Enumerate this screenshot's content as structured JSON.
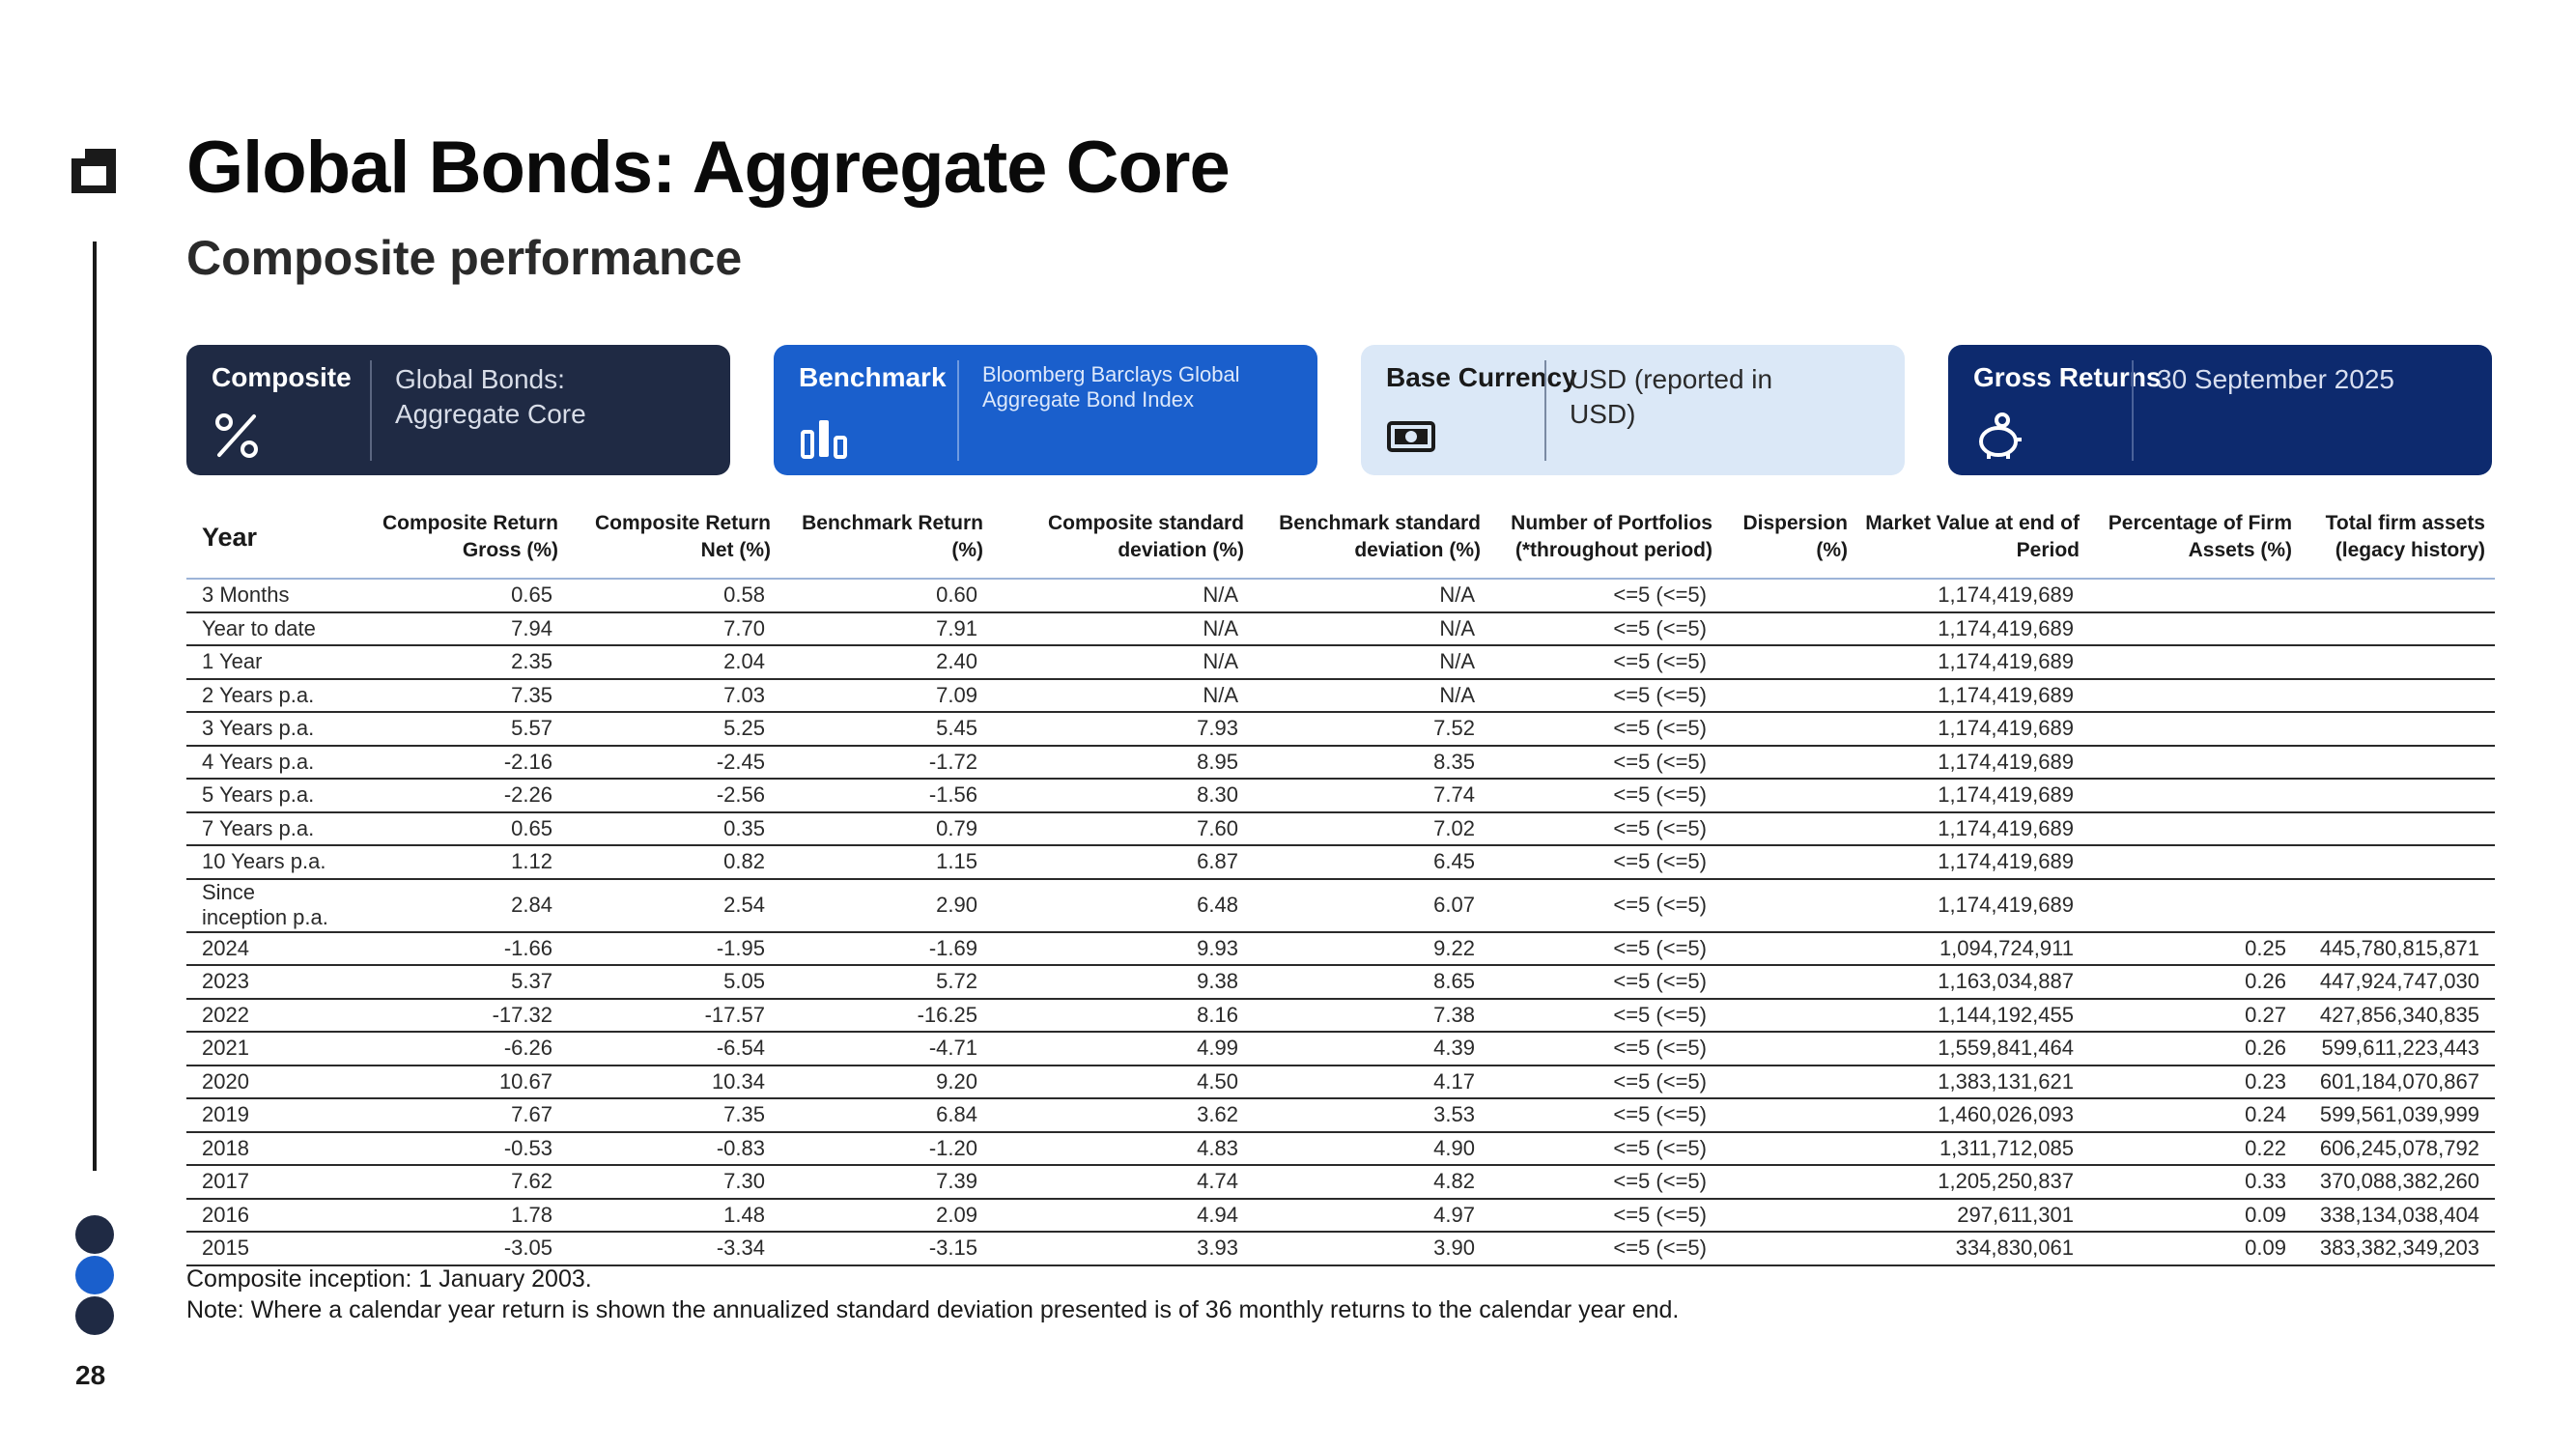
{
  "page": {
    "title": "Global Bonds: Aggregate Core",
    "subtitle": "Composite performance",
    "page_number": "28"
  },
  "brand": {
    "navy": "#1f2a44",
    "blue": "#1a5fcc",
    "light_blue": "#dbe8f7",
    "dark_blue": "#0d2a6e",
    "dot_colors": [
      "#1f2a44",
      "#1a5fcc",
      "#1f2a44"
    ]
  },
  "cards": [
    {
      "label": "Composite",
      "value": "Global Bonds: Aggregate Core",
      "icon": "percent-icon"
    },
    {
      "label": "Benchmark",
      "value": "Bloomberg Barclays Global Aggregate Bond Index",
      "icon": "bar-chart-icon"
    },
    {
      "label": "Base Currency",
      "value": "USD (reported in USD)",
      "icon": "banknote-icon"
    },
    {
      "label": "Gross Returns",
      "value": "30 September 2025",
      "icon": "piggy-bank-icon"
    }
  ],
  "table": {
    "headers": [
      "Year",
      "Composite Return Gross (%)",
      "Composite Return Net (%)",
      "Benchmark Return (%)",
      "Composite standard deviation (%)",
      "Benchmark standard deviation (%)",
      "Number of Portfolios (*throughout period)",
      "Dispersion (%)",
      "Market Value at end of Period",
      "Percentage of Firm Assets (%)",
      "Total firm assets (legacy history)"
    ],
    "rows": [
      [
        "3 Months",
        "0.65",
        "0.58",
        "0.60",
        "N/A",
        "N/A",
        "<=5 (<=5)",
        "",
        "1,174,419,689",
        "",
        ""
      ],
      [
        "Year to date",
        "7.94",
        "7.70",
        "7.91",
        "N/A",
        "N/A",
        "<=5 (<=5)",
        "",
        "1,174,419,689",
        "",
        ""
      ],
      [
        "1 Year",
        "2.35",
        "2.04",
        "2.40",
        "N/A",
        "N/A",
        "<=5 (<=5)",
        "",
        "1,174,419,689",
        "",
        ""
      ],
      [
        "2 Years p.a.",
        "7.35",
        "7.03",
        "7.09",
        "N/A",
        "N/A",
        "<=5 (<=5)",
        "",
        "1,174,419,689",
        "",
        ""
      ],
      [
        "3 Years p.a.",
        "5.57",
        "5.25",
        "5.45",
        "7.93",
        "7.52",
        "<=5 (<=5)",
        "",
        "1,174,419,689",
        "",
        ""
      ],
      [
        "4 Years p.a.",
        "-2.16",
        "-2.45",
        "-1.72",
        "8.95",
        "8.35",
        "<=5 (<=5)",
        "",
        "1,174,419,689",
        "",
        ""
      ],
      [
        "5 Years p.a.",
        "-2.26",
        "-2.56",
        "-1.56",
        "8.30",
        "7.74",
        "<=5 (<=5)",
        "",
        "1,174,419,689",
        "",
        ""
      ],
      [
        "7 Years p.a.",
        "0.65",
        "0.35",
        "0.79",
        "7.60",
        "7.02",
        "<=5 (<=5)",
        "",
        "1,174,419,689",
        "",
        ""
      ],
      [
        "10 Years p.a.",
        "1.12",
        "0.82",
        "1.15",
        "6.87",
        "6.45",
        "<=5 (<=5)",
        "",
        "1,174,419,689",
        "",
        ""
      ],
      [
        "Since inception p.a.",
        "2.84",
        "2.54",
        "2.90",
        "6.48",
        "6.07",
        "<=5 (<=5)",
        "",
        "1,174,419,689",
        "",
        ""
      ],
      [
        "2024",
        "-1.66",
        "-1.95",
        "-1.69",
        "9.93",
        "9.22",
        "<=5 (<=5)",
        "",
        "1,094,724,911",
        "0.25",
        "445,780,815,871"
      ],
      [
        "2023",
        "5.37",
        "5.05",
        "5.72",
        "9.38",
        "8.65",
        "<=5 (<=5)",
        "",
        "1,163,034,887",
        "0.26",
        "447,924,747,030"
      ],
      [
        "2022",
        "-17.32",
        "-17.57",
        "-16.25",
        "8.16",
        "7.38",
        "<=5 (<=5)",
        "",
        "1,144,192,455",
        "0.27",
        "427,856,340,835"
      ],
      [
        "2021",
        "-6.26",
        "-6.54",
        "-4.71",
        "4.99",
        "4.39",
        "<=5 (<=5)",
        "",
        "1,559,841,464",
        "0.26",
        "599,611,223,443"
      ],
      [
        "2020",
        "10.67",
        "10.34",
        "9.20",
        "4.50",
        "4.17",
        "<=5 (<=5)",
        "",
        "1,383,131,621",
        "0.23",
        "601,184,070,867"
      ],
      [
        "2019",
        "7.67",
        "7.35",
        "6.84",
        "3.62",
        "3.53",
        "<=5 (<=5)",
        "",
        "1,460,026,093",
        "0.24",
        "599,561,039,999"
      ],
      [
        "2018",
        "-0.53",
        "-0.83",
        "-1.20",
        "4.83",
        "4.90",
        "<=5 (<=5)",
        "",
        "1,311,712,085",
        "0.22",
        "606,245,078,792"
      ],
      [
        "2017",
        "7.62",
        "7.30",
        "7.39",
        "4.74",
        "4.82",
        "<=5 (<=5)",
        "",
        "1,205,250,837",
        "0.33",
        "370,088,382,260"
      ],
      [
        "2016",
        "1.78",
        "1.48",
        "2.09",
        "4.94",
        "4.97",
        "<=5 (<=5)",
        "",
        "297,611,301",
        "0.09",
        "338,134,038,404"
      ],
      [
        "2015",
        "-3.05",
        "-3.34",
        "-3.15",
        "3.93",
        "3.90",
        "<=5 (<=5)",
        "",
        "334,830,061",
        "0.09",
        "383,382,349,203"
      ]
    ]
  },
  "notes": {
    "inception": "Composite inception: 1 January 2003.",
    "note": "Note: Where a calendar year return is shown the annualized standard deviation presented is of 36 monthly returns to the calendar year end."
  }
}
